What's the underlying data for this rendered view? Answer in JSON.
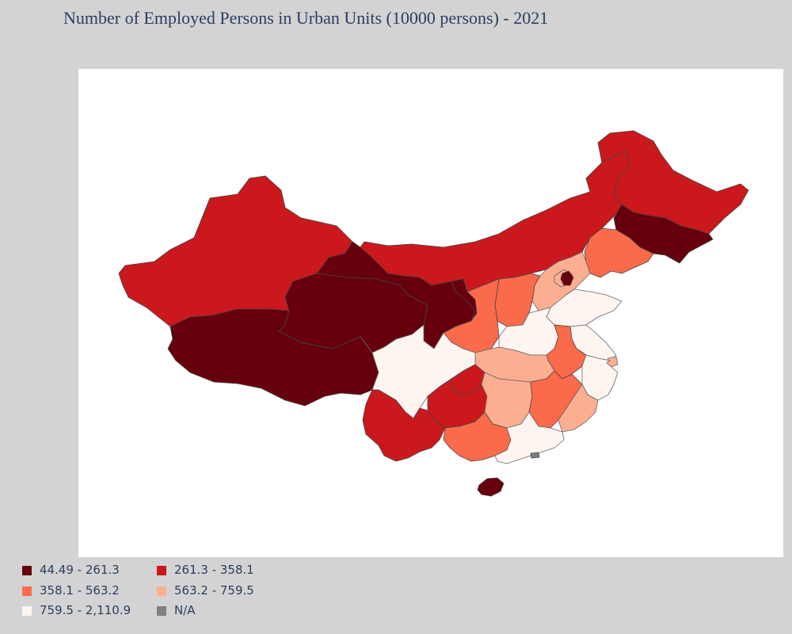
{
  "title": "Number of Employed Persons in Urban Units (10000 persons) - 2021",
  "colors": {
    "bin1": "#67000d",
    "bin2": "#cb181d",
    "bin3": "#fb6a4a",
    "bin4": "#fcae91",
    "bin5": "#fff5f0",
    "na": "#808080",
    "background": "#d3d3d3",
    "map_background": "#ffffff"
  },
  "legend": [
    {
      "label": "44.49 - 261.3",
      "color": "#67000d"
    },
    {
      "label": "261.3 - 358.1",
      "color": "#cb181d"
    },
    {
      "label": "358.1 - 563.2",
      "color": "#fb6a4a"
    },
    {
      "label": "563.2 - 759.5",
      "color": "#fcae91"
    },
    {
      "label": "759.5 - 2,110.9",
      "color": "#fff5f0"
    },
    {
      "label": "N/A",
      "color": "#808080"
    }
  ],
  "chart_data": {
    "type": "choropleth",
    "unit": "10000 persons",
    "year": 2021,
    "bins": [
      {
        "range": [
          44.49,
          261.3
        ]
      },
      {
        "range": [
          261.3,
          358.1
        ]
      },
      {
        "range": [
          358.1,
          563.2
        ]
      },
      {
        "range": [
          563.2,
          759.5
        ]
      },
      {
        "range": [
          759.5,
          2110.9
        ]
      }
    ],
    "regions": [
      {
        "region": "Xinjiang",
        "bin": 2
      },
      {
        "region": "Tibet",
        "bin": 1
      },
      {
        "region": "Qinghai",
        "bin": 1
      },
      {
        "region": "Gansu",
        "bin": 1
      },
      {
        "region": "Ningxia",
        "bin": 1
      },
      {
        "region": "Inner Mongolia",
        "bin": 2
      },
      {
        "region": "Heilongjiang",
        "bin": 2
      },
      {
        "region": "Jilin",
        "bin": 1
      },
      {
        "region": "Liaoning",
        "bin": 3
      },
      {
        "region": "Beijing",
        "bin": 4
      },
      {
        "region": "Tianjin",
        "bin": 1
      },
      {
        "region": "Hebei",
        "bin": 4
      },
      {
        "region": "Shanxi",
        "bin": 3
      },
      {
        "region": "Shaanxi",
        "bin": 3
      },
      {
        "region": "Shandong",
        "bin": 5
      },
      {
        "region": "Henan",
        "bin": 5
      },
      {
        "region": "Jiangsu",
        "bin": 5
      },
      {
        "region": "Shanghai",
        "bin": 4
      },
      {
        "region": "Zhejiang",
        "bin": 5
      },
      {
        "region": "Anhui",
        "bin": 3
      },
      {
        "region": "Hubei",
        "bin": 4
      },
      {
        "region": "Sichuan",
        "bin": 5
      },
      {
        "region": "Chongqing",
        "bin": 2
      },
      {
        "region": "Guizhou",
        "bin": 2
      },
      {
        "region": "Yunnan",
        "bin": 2
      },
      {
        "region": "Hunan",
        "bin": 4
      },
      {
        "region": "Jiangxi",
        "bin": 3
      },
      {
        "region": "Fujian",
        "bin": 4
      },
      {
        "region": "Guangxi",
        "bin": 3
      },
      {
        "region": "Guangdong",
        "bin": 5
      },
      {
        "region": "Hainan",
        "bin": 1
      },
      {
        "region": "Hong Kong/Macau",
        "bin": "N/A"
      }
    ]
  }
}
